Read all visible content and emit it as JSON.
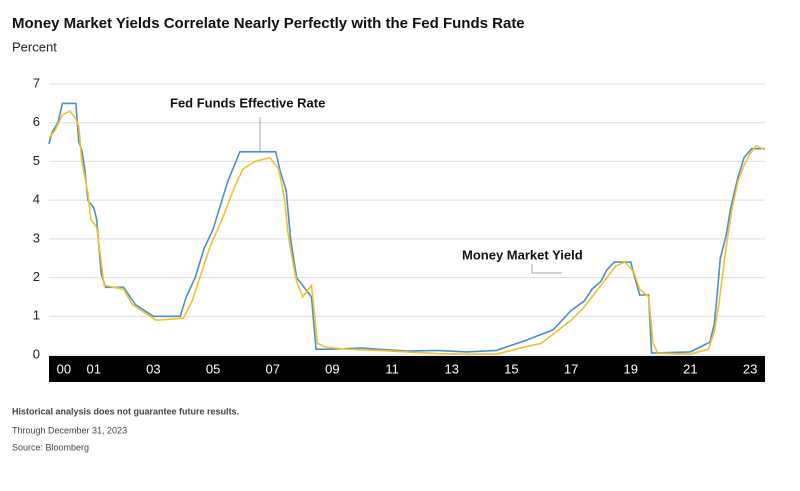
{
  "chart_data": {
    "type": "line",
    "title": "Money Market Yields Correlate Nearly Perfectly with the Fed Funds Rate",
    "y_label": "Percent",
    "annotations": [
      "Fed Funds Effective Rate",
      "Money Market Yield"
    ],
    "footnotes": [
      "Historical analysis does not guarantee future results.",
      "Through December 31, 2023",
      "Source: Bloomberg"
    ],
    "xlim": [
      2000,
      2024
    ],
    "xticks": [
      {
        "value": 2000,
        "label": "00"
      },
      {
        "value": 2001,
        "label": "01"
      },
      {
        "value": 2003,
        "label": "03"
      },
      {
        "value": 2005,
        "label": "05"
      },
      {
        "value": 2007,
        "label": "07"
      },
      {
        "value": 2009,
        "label": "09"
      },
      {
        "value": 2011,
        "label": "11"
      },
      {
        "value": 2013,
        "label": "13"
      },
      {
        "value": 2015,
        "label": "15"
      },
      {
        "value": 2017,
        "label": "17"
      },
      {
        "value": 2019,
        "label": "19"
      },
      {
        "value": 2021,
        "label": "21"
      },
      {
        "value": 2023,
        "label": "23"
      }
    ],
    "ylim": [
      0,
      7
    ],
    "yticks": [
      0,
      1,
      2,
      3,
      4,
      5,
      6,
      7
    ],
    "grid": true,
    "series": [
      {
        "name": "Fed Funds Effective Rate",
        "color": "#4a90c8",
        "x": [
          2000.0,
          2000.1,
          2000.3,
          2000.45,
          2000.9,
          2001.0,
          2001.1,
          2001.2,
          2001.3,
          2001.5,
          2001.6,
          2001.75,
          2001.9,
          2002.5,
          2002.9,
          2003.5,
          2004.4,
          2004.6,
          2004.9,
          2005.2,
          2005.5,
          2005.8,
          2006.0,
          2006.4,
          2007.6,
          2007.75,
          2007.95,
          2008.1,
          2008.3,
          2008.8,
          2008.95,
          2009.5,
          2010.5,
          2011.0,
          2012.0,
          2013.0,
          2014.0,
          2015.0,
          2015.95,
          2016.9,
          2017.2,
          2017.5,
          2017.95,
          2018.2,
          2018.5,
          2018.7,
          2018.95,
          2019.5,
          2019.6,
          2019.8,
          2020.1,
          2020.2,
          2021.5,
          2022.15,
          2022.3,
          2022.4,
          2022.5,
          2022.7,
          2022.85,
          2023.0,
          2023.1,
          2023.3,
          2023.55,
          2024.0
        ],
        "values": [
          5.45,
          5.75,
          6.0,
          6.5,
          6.5,
          5.5,
          5.3,
          4.8,
          4.0,
          3.8,
          3.5,
          2.1,
          1.75,
          1.75,
          1.3,
          1.0,
          1.0,
          1.5,
          2.0,
          2.75,
          3.25,
          4.0,
          4.5,
          5.25,
          5.25,
          4.75,
          4.25,
          3.0,
          2.0,
          1.5,
          0.15,
          0.15,
          0.18,
          0.15,
          0.1,
          0.12,
          0.08,
          0.12,
          0.37,
          0.65,
          0.9,
          1.15,
          1.4,
          1.7,
          1.9,
          2.2,
          2.4,
          2.4,
          2.1,
          1.55,
          1.55,
          0.05,
          0.08,
          0.33,
          0.8,
          1.6,
          2.5,
          3.1,
          3.8,
          4.3,
          4.6,
          5.1,
          5.33,
          5.33
        ]
      },
      {
        "name": "Money Market Yield",
        "color": "#f2c12e",
        "x": [
          2000.0,
          2000.2,
          2000.45,
          2000.7,
          2000.9,
          2001.0,
          2001.1,
          2001.3,
          2001.4,
          2001.6,
          2001.75,
          2001.85,
          2002.5,
          2002.8,
          2003.3,
          2003.6,
          2004.5,
          2004.8,
          2005.1,
          2005.4,
          2005.8,
          2006.2,
          2006.5,
          2006.9,
          2007.4,
          2007.7,
          2007.9,
          2008.0,
          2008.15,
          2008.3,
          2008.5,
          2008.8,
          2009.0,
          2009.3,
          2010.0,
          2011.0,
          2012.0,
          2013.0,
          2014.0,
          2015.0,
          2015.9,
          2016.5,
          2017.0,
          2017.5,
          2017.9,
          2018.3,
          2018.7,
          2019.0,
          2019.3,
          2019.6,
          2019.8,
          2020.1,
          2020.25,
          2020.4,
          2021.5,
          2022.1,
          2022.3,
          2022.45,
          2022.6,
          2022.7,
          2022.9,
          2023.1,
          2023.3,
          2023.5,
          2023.7,
          2024.0
        ],
        "values": [
          5.6,
          5.8,
          6.2,
          6.3,
          6.1,
          5.9,
          5.0,
          4.2,
          3.5,
          3.3,
          2.4,
          1.8,
          1.7,
          1.3,
          1.05,
          0.9,
          0.95,
          1.4,
          2.1,
          2.8,
          3.5,
          4.3,
          4.8,
          5.0,
          5.1,
          4.8,
          4.0,
          3.2,
          2.5,
          1.9,
          1.5,
          1.8,
          0.3,
          0.2,
          0.15,
          0.12,
          0.08,
          0.04,
          0.02,
          0.02,
          0.2,
          0.3,
          0.6,
          0.9,
          1.2,
          1.6,
          2.0,
          2.3,
          2.4,
          2.15,
          1.7,
          1.5,
          0.3,
          0.05,
          0.02,
          0.15,
          0.6,
          1.3,
          2.2,
          2.8,
          3.8,
          4.5,
          4.9,
          5.2,
          5.4,
          5.3
        ]
      }
    ]
  }
}
